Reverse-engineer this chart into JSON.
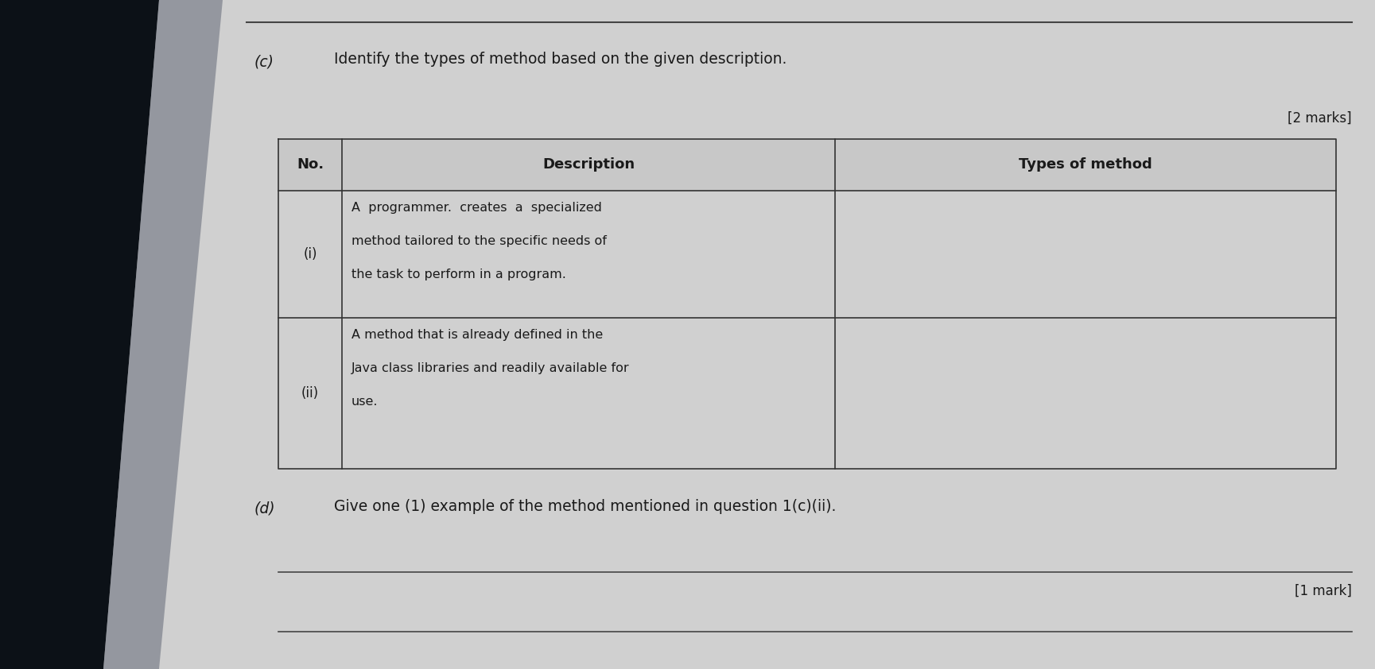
{
  "bg_color": "#c4c4c4",
  "paper_color": "#d2d2d2",
  "dark_wedge_color": "#0d1117",
  "part_c_label": "(c)",
  "part_c_instruction": "Identify the types of method based on the given description.",
  "marks_c": "[2 marks]",
  "table_headers": [
    "No.",
    "Description",
    "Types of method"
  ],
  "row1_no": "(i)",
  "row1_desc_line1": "A  programmer.  creates  a  specialized",
  "row1_desc_line2": "method tailored to the specific needs of",
  "row1_desc_line3": "the task to perform in a program.",
  "row2_no": "(ii)",
  "row2_desc_line1": "A method that is already defined in the",
  "row2_desc_line2": "Java class libraries and readily available for",
  "row2_desc_line3": "use.",
  "part_d_label": "(d)",
  "part_d_instruction": "Give one (1) example of the method mentioned in question 1(c)(ii).",
  "marks_d": "[1 mark]",
  "text_color": "#1a1a1a",
  "line_color": "#444444",
  "table_border_color": "#333333",
  "font_size_main": 13.5,
  "font_size_small": 12.0,
  "font_size_label": 13.5,
  "font_size_header": 13.0
}
